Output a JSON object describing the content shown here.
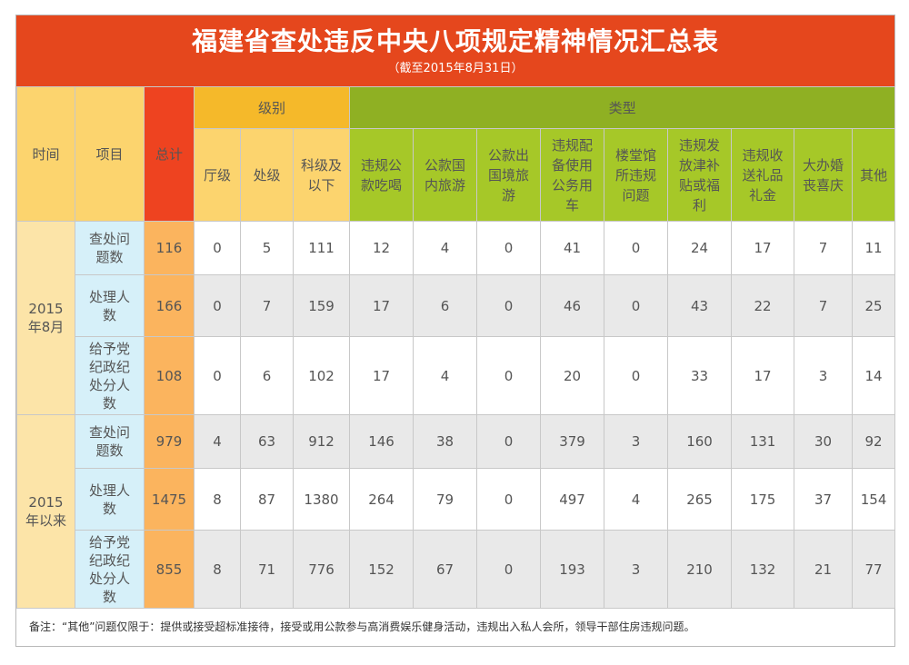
{
  "title": "福建省查处违反中央八项规定精神情况汇总表",
  "subtitle": "（截至2015年8月31日）",
  "headers": {
    "time": "时间",
    "item": "项目",
    "total": "总计",
    "level_group": "级别",
    "type_group": "类型",
    "levels": [
      "厅级",
      "处级",
      "科级及以下"
    ],
    "types": [
      "违规公款吃喝",
      "公款国内旅游",
      "公款出国境旅游",
      "违规配备使用公务用车",
      "楼堂馆所违规问题",
      "违规发放津补贴或福利",
      "违规收送礼品礼金",
      "大办婚丧喜庆",
      "其他"
    ]
  },
  "periods": [
    {
      "label": "2015年8月",
      "rows": [
        {
          "item": "查处问题数",
          "total": "116",
          "levels": [
            "0",
            "5",
            "111"
          ],
          "types": [
            "12",
            "4",
            "0",
            "41",
            "0",
            "24",
            "17",
            "7",
            "11"
          ]
        },
        {
          "item": "处理人数",
          "total": "166",
          "levels": [
            "0",
            "7",
            "159"
          ],
          "types": [
            "17",
            "6",
            "0",
            "46",
            "0",
            "43",
            "22",
            "7",
            "25"
          ]
        },
        {
          "item": "给予党纪政纪处分人数",
          "total": "108",
          "levels": [
            "0",
            "6",
            "102"
          ],
          "types": [
            "17",
            "4",
            "0",
            "20",
            "0",
            "33",
            "17",
            "3",
            "14"
          ]
        }
      ]
    },
    {
      "label": "2015年以来",
      "rows": [
        {
          "item": "查处问题数",
          "total": "979",
          "levels": [
            "4",
            "63",
            "912"
          ],
          "types": [
            "146",
            "38",
            "0",
            "379",
            "3",
            "160",
            "131",
            "30",
            "92"
          ]
        },
        {
          "item": "处理人数",
          "total": "1475",
          "levels": [
            "8",
            "87",
            "1380"
          ],
          "types": [
            "264",
            "79",
            "0",
            "497",
            "4",
            "265",
            "175",
            "37",
            "154"
          ]
        },
        {
          "item": "给予党纪政纪处分人数",
          "total": "855",
          "levels": [
            "8",
            "71",
            "776"
          ],
          "types": [
            "152",
            "67",
            "0",
            "193",
            "3",
            "210",
            "132",
            "21",
            "77"
          ]
        }
      ]
    }
  ],
  "note": "备注：“其他”问题仅限于：提供或接受超标准接待，接受或用公款参与高消费娱乐健身活动，违规出入私人会所，领导干部住房违规问题。",
  "colors": {
    "title_bg": "#e5471d",
    "level_group_bg": "#f5b92a",
    "type_group_bg": "#8fb023",
    "total_header_bg": "#ee4320",
    "total_cell_bg": "#fbb45e",
    "item_bg": "#d6f0f9",
    "period_bg": "#fce4a8"
  }
}
